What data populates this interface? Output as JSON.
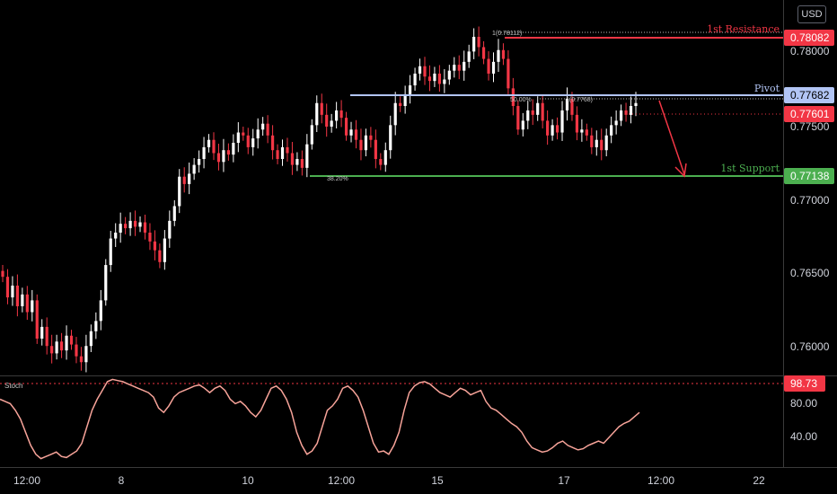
{
  "currency": "USD",
  "indicator": {
    "label": "Stoch",
    "level_value": "98.73",
    "ticks": [
      "80.00",
      "40.00"
    ]
  },
  "price_axis": {
    "ticks": [
      "0.78000",
      "0.77500",
      "0.77000",
      "0.76500",
      "0.76000"
    ]
  },
  "time_axis": {
    "ticks": [
      "12:00",
      "8",
      "10",
      "12:00",
      "15",
      "17",
      "12:00",
      "22"
    ]
  },
  "levels": [
    {
      "label": "1st Resistance",
      "value": "0.78082",
      "color": "#f23645"
    },
    {
      "label": "Pivot",
      "value": "0.77682",
      "color": "#b2c5f5"
    },
    {
      "label": "1st Support",
      "value": "0.77138",
      "color": "#4caf50"
    }
  ],
  "current_price": {
    "value": "0.77601",
    "color": "#f23645"
  },
  "fib_labels": {
    "high": "1(0.78112)",
    "mid": "50.00%",
    "pivot_mid": "1(0.7768)",
    "low": "38.20%"
  },
  "colors": {
    "up": "#ffffff",
    "down": "#f23645",
    "stoch_line": "#f7a399"
  },
  "chart_data": {
    "type": "candlestick",
    "ylim": [
      0.7575,
      0.783
    ],
    "close_path": [
      0.7642,
      0.7628,
      0.7636,
      0.7622,
      0.763,
      0.7618,
      0.7626,
      0.76,
      0.7608,
      0.7595,
      0.759,
      0.7598,
      0.7592,
      0.7602,
      0.7596,
      0.7588,
      0.7584,
      0.7595,
      0.7605,
      0.7612,
      0.7626,
      0.765,
      0.7668,
      0.7672,
      0.7678,
      0.7675,
      0.768,
      0.7676,
      0.7679,
      0.7672,
      0.7666,
      0.766,
      0.7652,
      0.7668,
      0.768,
      0.769,
      0.771,
      0.7705,
      0.7712,
      0.7718,
      0.7722,
      0.773,
      0.7735,
      0.7726,
      0.772,
      0.7728,
      0.7725,
      0.7733,
      0.774,
      0.7738,
      0.773,
      0.7736,
      0.7742,
      0.7746,
      0.7738,
      0.7728,
      0.7722,
      0.773,
      0.7726,
      0.7718,
      0.7722,
      0.7716,
      0.7732,
      0.7745,
      0.776,
      0.7752,
      0.7744,
      0.7748,
      0.7755,
      0.775,
      0.7738,
      0.7742,
      0.7735,
      0.7728,
      0.7738,
      0.7735,
      0.7722,
      0.7718,
      0.7728,
      0.7745,
      0.776,
      0.7758,
      0.7766,
      0.7772,
      0.778,
      0.7785,
      0.7778,
      0.7775,
      0.778,
      0.7773,
      0.7776,
      0.7782,
      0.7786,
      0.7782,
      0.7788,
      0.7795,
      0.7805,
      0.7798,
      0.779,
      0.778,
      0.7788,
      0.7796,
      0.779,
      0.777,
      0.7758,
      0.7742,
      0.7748,
      0.7755,
      0.7752,
      0.776,
      0.7748,
      0.7738,
      0.7745,
      0.774,
      0.7755,
      0.7763,
      0.7752,
      0.774,
      0.7742,
      0.7738,
      0.773,
      0.7735,
      0.7728,
      0.7738,
      0.7745,
      0.7748,
      0.7755,
      0.7752,
      0.7758,
      0.776
    ],
    "stoch_ylim": [
      20,
      100
    ],
    "stoch_path": [
      80,
      78,
      76,
      70,
      62,
      50,
      38,
      30,
      26,
      28,
      30,
      32,
      28,
      27,
      30,
      33,
      40,
      55,
      70,
      80,
      88,
      96,
      98,
      97,
      96,
      94,
      92,
      90,
      88,
      86,
      82,
      72,
      68,
      74,
      82,
      86,
      88,
      90,
      92,
      93,
      90,
      86,
      90,
      92,
      88,
      80,
      76,
      78,
      74,
      68,
      64,
      70,
      80,
      90,
      92,
      88,
      80,
      68,
      50,
      38,
      30,
      33,
      40,
      55,
      70,
      74,
      80,
      90,
      92,
      88,
      82,
      70,
      55,
      40,
      32,
      33,
      30,
      38,
      50,
      70,
      86,
      92,
      95,
      96,
      94,
      90,
      86,
      84,
      82,
      86,
      90,
      88,
      84,
      86,
      88,
      78,
      72,
      70,
      66,
      62,
      58,
      55,
      50,
      42,
      36,
      34,
      32,
      33,
      36,
      40,
      42,
      38,
      36,
      34,
      35,
      38,
      40,
      42,
      40,
      45,
      50,
      55,
      58,
      60,
      64,
      68
    ]
  }
}
